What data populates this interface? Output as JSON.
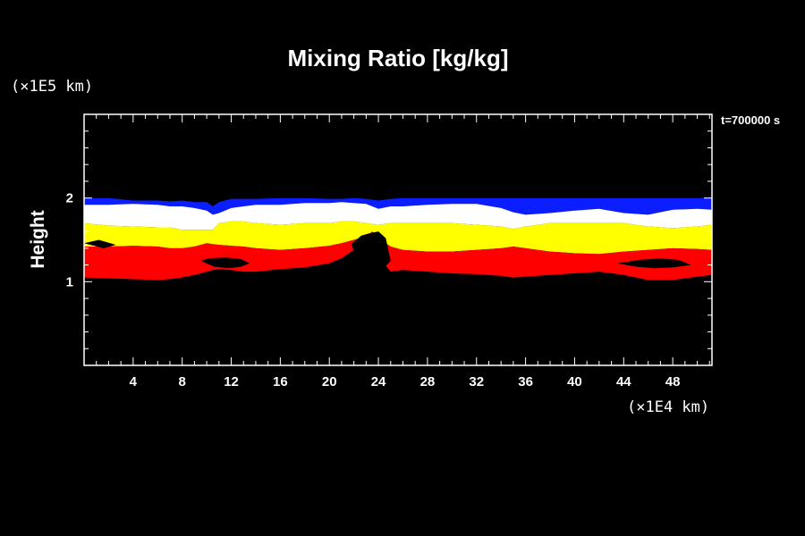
{
  "chart_data": {
    "type": "area",
    "title": "Mixing Ratio [kg/kg]",
    "ylabel": "Height",
    "y_unit": "(×1E5 km)",
    "x_unit": "(×1E4 km)",
    "time_label": "t=700000 s",
    "xlim": [
      0,
      51.2
    ],
    "ylim": [
      0,
      3
    ],
    "x_ticks": [
      4,
      8,
      12,
      16,
      20,
      24,
      28,
      32,
      36,
      40,
      44,
      48
    ],
    "y_ticks": [
      1,
      2
    ],
    "grid": false,
    "colors": {
      "background": "#000000",
      "frame": "#ffffff",
      "blue": "#0a1eff",
      "white": "#ffffff",
      "yellow": "#ffff00",
      "red": "#ff0000",
      "gap": "#000000"
    },
    "x": [
      0,
      2,
      4,
      6,
      7,
      8,
      9,
      10,
      10.5,
      11,
      12,
      13,
      14,
      16,
      18,
      20,
      21,
      22,
      23,
      23.5,
      24,
      25,
      26,
      28,
      30,
      32,
      34,
      35,
      36,
      38,
      40,
      42,
      44,
      46,
      48,
      50,
      51.2
    ],
    "bands": [
      {
        "name": "blue",
        "top": [
          2.0,
          2.0,
          1.97,
          1.97,
          1.96,
          1.97,
          1.95,
          1.95,
          1.9,
          1.95,
          1.99,
          1.99,
          1.99,
          2.0,
          2.0,
          1.99,
          1.99,
          2.0,
          1.99,
          1.98,
          1.97,
          1.99,
          2.0,
          2.0,
          2.0,
          2.0,
          2.0,
          2.0,
          2.0,
          2.0,
          2.0,
          2.0,
          2.0,
          2.0,
          2.0,
          2.0,
          2.0
        ],
        "bottom": [
          1.92,
          1.92,
          1.93,
          1.92,
          1.9,
          1.9,
          1.88,
          1.85,
          1.8,
          1.82,
          1.88,
          1.9,
          1.92,
          1.92,
          1.94,
          1.94,
          1.95,
          1.94,
          1.93,
          1.9,
          1.87,
          1.9,
          1.9,
          1.92,
          1.93,
          1.93,
          1.88,
          1.83,
          1.8,
          1.82,
          1.85,
          1.87,
          1.82,
          1.8,
          1.86,
          1.87,
          1.86
        ]
      },
      {
        "name": "white",
        "top": [
          1.92,
          1.92,
          1.93,
          1.92,
          1.9,
          1.9,
          1.88,
          1.85,
          1.8,
          1.82,
          1.88,
          1.9,
          1.92,
          1.92,
          1.94,
          1.94,
          1.95,
          1.94,
          1.93,
          1.9,
          1.87,
          1.9,
          1.9,
          1.92,
          1.93,
          1.93,
          1.88,
          1.83,
          1.8,
          1.82,
          1.85,
          1.87,
          1.82,
          1.8,
          1.86,
          1.87,
          1.86
        ],
        "bottom": [
          1.7,
          1.67,
          1.66,
          1.65,
          1.65,
          1.62,
          1.62,
          1.62,
          1.62,
          1.7,
          1.72,
          1.72,
          1.7,
          1.68,
          1.7,
          1.7,
          1.72,
          1.72,
          1.7,
          1.69,
          1.68,
          1.7,
          1.7,
          1.7,
          1.7,
          1.68,
          1.66,
          1.63,
          1.66,
          1.7,
          1.7,
          1.7,
          1.7,
          1.66,
          1.64,
          1.66,
          1.68
        ]
      },
      {
        "name": "yellow",
        "top": [
          1.7,
          1.67,
          1.66,
          1.65,
          1.65,
          1.62,
          1.62,
          1.62,
          1.62,
          1.7,
          1.72,
          1.72,
          1.7,
          1.68,
          1.7,
          1.7,
          1.72,
          1.72,
          1.7,
          1.69,
          1.68,
          1.7,
          1.7,
          1.7,
          1.7,
          1.68,
          1.66,
          1.63,
          1.66,
          1.7,
          1.7,
          1.7,
          1.7,
          1.66,
          1.64,
          1.66,
          1.68
        ],
        "bottom": [
          1.42,
          1.42,
          1.43,
          1.42,
          1.4,
          1.4,
          1.42,
          1.46,
          1.45,
          1.44,
          1.43,
          1.42,
          1.4,
          1.38,
          1.4,
          1.43,
          1.46,
          1.5,
          1.54,
          1.6,
          1.52,
          1.42,
          1.38,
          1.36,
          1.36,
          1.38,
          1.4,
          1.42,
          1.4,
          1.36,
          1.34,
          1.33,
          1.36,
          1.38,
          1.4,
          1.39,
          1.38
        ]
      },
      {
        "name": "red",
        "top": [
          1.42,
          1.42,
          1.43,
          1.42,
          1.4,
          1.4,
          1.42,
          1.46,
          1.45,
          1.44,
          1.43,
          1.42,
          1.4,
          1.38,
          1.4,
          1.43,
          1.46,
          1.5,
          1.54,
          1.6,
          1.52,
          1.42,
          1.38,
          1.36,
          1.36,
          1.38,
          1.4,
          1.42,
          1.4,
          1.36,
          1.34,
          1.33,
          1.36,
          1.38,
          1.4,
          1.39,
          1.38
        ],
        "bottom": [
          1.05,
          1.04,
          1.03,
          1.02,
          1.03,
          1.05,
          1.08,
          1.12,
          1.14,
          1.15,
          1.14,
          1.12,
          1.12,
          1.15,
          1.17,
          1.22,
          1.28,
          1.38,
          1.45,
          1.52,
          1.3,
          1.12,
          1.14,
          1.12,
          1.1,
          1.09,
          1.07,
          1.05,
          1.06,
          1.08,
          1.1,
          1.12,
          1.08,
          1.02,
          1.02,
          1.06,
          1.08
        ]
      }
    ],
    "gaps": [
      {
        "name": "central-gap",
        "x": [
          22.6,
          23.3,
          24.0,
          24.6,
          25.0,
          24.2,
          23.4,
          22.8,
          22.2,
          21.8
        ],
        "y": [
          1.55,
          1.58,
          1.6,
          1.52,
          1.25,
          1.12,
          1.1,
          1.12,
          1.28,
          1.45
        ]
      },
      {
        "name": "lower-left-gap",
        "x": [
          9.5,
          10.6,
          11.8,
          12.8,
          13.5,
          12.8,
          11.5,
          10.2
        ],
        "y": [
          1.25,
          1.18,
          1.16,
          1.18,
          1.22,
          1.27,
          1.29,
          1.28
        ]
      },
      {
        "name": "right-red-gap",
        "x": [
          43.5,
          45.0,
          46.5,
          48.0,
          49.5,
          48.5,
          47.0,
          45.2
        ],
        "y": [
          1.22,
          1.18,
          1.16,
          1.17,
          1.2,
          1.26,
          1.28,
          1.26
        ]
      },
      {
        "name": "left-yellow-notch",
        "x": [
          0.0,
          1.2,
          2.6,
          1.6
        ],
        "y": [
          1.46,
          1.5,
          1.44,
          1.4
        ]
      }
    ]
  }
}
